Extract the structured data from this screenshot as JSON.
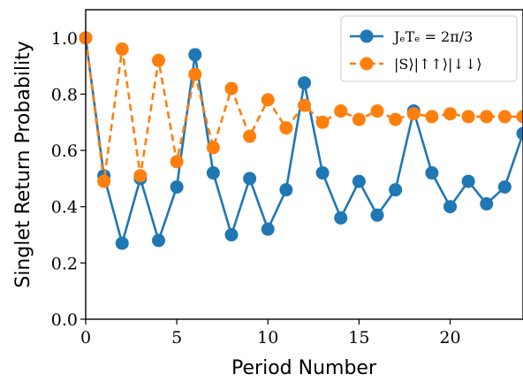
{
  "chart_data": {
    "type": "line",
    "xlabel": "Period Number",
    "ylabel": "Singlet Return Probability",
    "xlim": [
      0,
      24
    ],
    "ylim": [
      0.0,
      1.1
    ],
    "xticks": [
      "0",
      "5",
      "10",
      "15",
      "20"
    ],
    "yticks": [
      "0.0",
      "0.2",
      "0.4",
      "0.6",
      "0.8",
      "1.0"
    ],
    "grid": false,
    "legend_position": "top-right",
    "x": [
      0,
      1,
      2,
      3,
      4,
      5,
      6,
      7,
      8,
      9,
      10,
      11,
      12,
      13,
      14,
      15,
      16,
      17,
      18,
      19,
      20,
      21,
      22,
      23,
      24
    ],
    "series": [
      {
        "name": "JₑTₑ = 2π/3",
        "color": "#1f77b4",
        "style": "solid",
        "values": [
          1.0,
          0.51,
          0.27,
          0.5,
          0.28,
          0.47,
          0.94,
          0.52,
          0.3,
          0.5,
          0.32,
          0.46,
          0.84,
          0.52,
          0.36,
          0.49,
          0.37,
          0.46,
          0.74,
          0.52,
          0.4,
          0.49,
          0.41,
          0.47,
          0.66
        ]
      },
      {
        "name": "|S⟩|↑↑⟩|↓↓⟩",
        "color": "#ff7f0e",
        "style": "dashed",
        "values": [
          1.0,
          0.49,
          0.96,
          0.51,
          0.92,
          0.56,
          0.87,
          0.61,
          0.82,
          0.65,
          0.78,
          0.68,
          0.76,
          0.7,
          0.74,
          0.71,
          0.74,
          0.71,
          0.73,
          0.72,
          0.73,
          0.72,
          0.72,
          0.72,
          0.72
        ]
      }
    ]
  }
}
